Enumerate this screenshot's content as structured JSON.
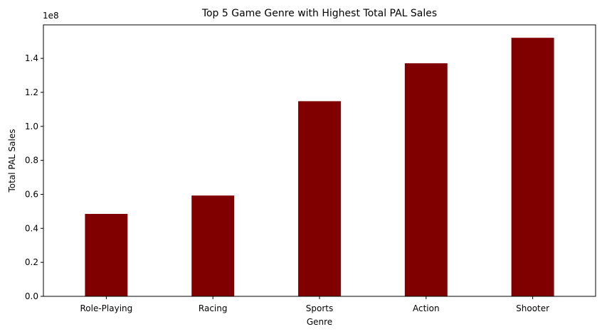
{
  "chart_data": {
    "type": "bar",
    "title": "Top 5 Game Genre with Highest Total PAL Sales",
    "xlabel": "Genre",
    "ylabel": "Total PAL Sales",
    "offset_text": "1e8",
    "categories": [
      "Role-Playing",
      "Racing",
      "Sports",
      "Action",
      "Shooter"
    ],
    "values": [
      48500000,
      59300000,
      114800000,
      137100000,
      152100000
    ],
    "ylim": [
      0,
      159700000
    ],
    "yticks": [
      0,
      20000000,
      40000000,
      60000000,
      80000000,
      100000000,
      120000000,
      140000000
    ],
    "ytick_labels": [
      "0.0",
      "0.2",
      "0.4",
      "0.6",
      "0.8",
      "1.0",
      "1.2",
      "1.4"
    ],
    "bar_color": "#800000",
    "grid": false,
    "legend": "none"
  }
}
